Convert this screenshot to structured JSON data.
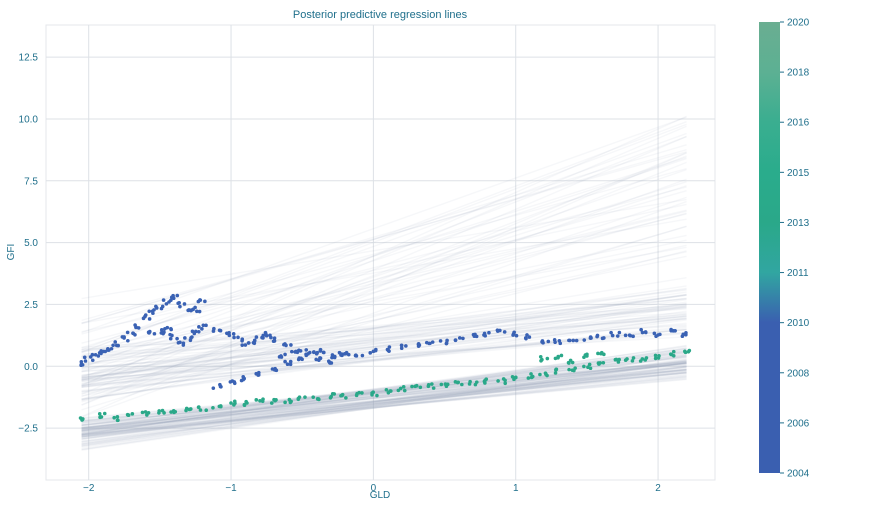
{
  "chart_data": {
    "type": "scatter",
    "title": "Posterior predictive regression lines",
    "xlabel": "GLD",
    "ylabel": "GFI",
    "xlim": [
      -2.3,
      2.4
    ],
    "ylim": [
      -4.6,
      13.8
    ],
    "xticks": [
      -2,
      -1,
      0,
      1,
      2
    ],
    "xtick_labels": [
      "−2",
      "−1",
      "0",
      "1",
      "2"
    ],
    "yticks": [
      -2.5,
      0.0,
      2.5,
      5.0,
      7.5,
      10.0,
      12.5
    ],
    "ytick_labels": [
      "−2.5",
      "0.0",
      "2.5",
      "5.0",
      "7.5",
      "10.0",
      "12.5"
    ],
    "grid": true,
    "colorbar": {
      "label_values": [
        "2004",
        "2006",
        "2008",
        "2010",
        "2011",
        "2013",
        "2015",
        "2016",
        "2018",
        "2020"
      ],
      "colors": [
        "#3a5fb0",
        "#3a5fb0",
        "#3a5fb0",
        "#3a5fb0",
        "#31a6a1",
        "#2aa889",
        "#2aac8c",
        "#3aae90",
        "#5cb093",
        "#6aae91"
      ]
    },
    "regression_lines": {
      "count": 200,
      "x_range": [
        -2.05,
        2.2
      ],
      "color": "#9aa6b8",
      "intercept_range": [
        -1.6,
        5.7
      ],
      "slope_range": [
        0.3,
        2.6
      ]
    },
    "series": [
      {
        "era": "2004-2010",
        "color": "#3a62b4",
        "points": [
          [
            -2.05,
            0.1
          ],
          [
            -2.0,
            0.3
          ],
          [
            -1.95,
            0.5
          ],
          [
            -1.9,
            0.6
          ],
          [
            -1.85,
            0.7
          ],
          [
            -1.8,
            0.9
          ],
          [
            -1.75,
            1.1
          ],
          [
            -1.7,
            1.3
          ],
          [
            -1.65,
            1.6
          ],
          [
            -1.6,
            2.0
          ],
          [
            -1.55,
            2.2
          ],
          [
            -1.5,
            2.4
          ],
          [
            -1.45,
            2.6
          ],
          [
            -1.4,
            2.8
          ],
          [
            -1.35,
            2.5
          ],
          [
            -1.3,
            2.2
          ],
          [
            -1.25,
            2.3
          ],
          [
            -1.2,
            2.6
          ],
          [
            -1.55,
            1.4
          ],
          [
            -1.5,
            1.4
          ],
          [
            -1.45,
            1.5
          ],
          [
            -1.4,
            1.2
          ],
          [
            -1.35,
            0.9
          ],
          [
            -1.3,
            1.1
          ],
          [
            -1.25,
            1.4
          ],
          [
            -1.2,
            1.6
          ],
          [
            -1.1,
            1.5
          ],
          [
            -1.0,
            1.3
          ],
          [
            -0.95,
            1.1
          ],
          [
            -0.9,
            0.9
          ],
          [
            -0.85,
            1.0
          ],
          [
            -0.8,
            1.2
          ],
          [
            -0.75,
            1.3
          ],
          [
            -0.7,
            1.1
          ],
          [
            -0.6,
            0.9
          ],
          [
            -0.5,
            0.7
          ],
          [
            -0.4,
            0.5
          ],
          [
            -0.3,
            0.4
          ],
          [
            -0.2,
            0.5
          ],
          [
            -0.1,
            0.5
          ],
          [
            0.0,
            0.6
          ],
          [
            0.1,
            0.7
          ],
          [
            0.2,
            0.8
          ],
          [
            0.3,
            0.9
          ],
          [
            0.4,
            0.9
          ],
          [
            0.5,
            1.0
          ],
          [
            0.6,
            1.1
          ],
          [
            0.7,
            1.2
          ],
          [
            0.8,
            1.3
          ],
          [
            0.9,
            1.4
          ],
          [
            1.0,
            1.3
          ],
          [
            1.1,
            1.2
          ],
          [
            1.2,
            1.0
          ],
          [
            1.3,
            1.0
          ],
          [
            1.4,
            1.1
          ],
          [
            1.5,
            1.1
          ],
          [
            1.6,
            1.2
          ],
          [
            1.7,
            1.3
          ],
          [
            1.8,
            1.3
          ],
          [
            1.9,
            1.4
          ],
          [
            2.0,
            1.3
          ],
          [
            2.1,
            1.4
          ],
          [
            2.2,
            1.3
          ],
          [
            -1.1,
            -0.8
          ],
          [
            -1.0,
            -0.6
          ],
          [
            -0.9,
            -0.5
          ],
          [
            -0.8,
            -0.3
          ],
          [
            -0.7,
            -0.1
          ],
          [
            -0.6,
            0.1
          ],
          [
            -0.5,
            0.3
          ],
          [
            -0.45,
            0.5
          ],
          [
            -0.4,
            0.3
          ],
          [
            -0.3,
            0.2
          ],
          [
            -0.65,
            0.4
          ],
          [
            -0.55,
            0.6
          ],
          [
            -0.35,
            0.6
          ],
          [
            -0.25,
            0.5
          ]
        ]
      },
      {
        "era": "2011-2020",
        "color": "#2aa889",
        "points": [
          [
            -2.05,
            -2.1
          ],
          [
            -1.9,
            -2.0
          ],
          [
            -1.8,
            -2.1
          ],
          [
            -1.7,
            -2.0
          ],
          [
            -1.6,
            -1.9
          ],
          [
            -1.5,
            -1.8
          ],
          [
            -1.4,
            -1.8
          ],
          [
            -1.3,
            -1.7
          ],
          [
            -1.2,
            -1.7
          ],
          [
            -1.1,
            -1.6
          ],
          [
            -1.0,
            -1.5
          ],
          [
            -0.9,
            -1.5
          ],
          [
            -0.8,
            -1.4
          ],
          [
            -0.7,
            -1.4
          ],
          [
            -0.6,
            -1.4
          ],
          [
            -0.5,
            -1.3
          ],
          [
            -0.4,
            -1.3
          ],
          [
            -0.3,
            -1.2
          ],
          [
            -0.2,
            -1.2
          ],
          [
            -0.1,
            -1.1
          ],
          [
            0.0,
            -1.1
          ],
          [
            0.1,
            -1.0
          ],
          [
            0.2,
            -0.9
          ],
          [
            0.3,
            -0.8
          ],
          [
            0.4,
            -0.8
          ],
          [
            0.5,
            -0.8
          ],
          [
            0.6,
            -0.7
          ],
          [
            0.7,
            -0.7
          ],
          [
            0.8,
            -0.6
          ],
          [
            0.9,
            -0.6
          ],
          [
            1.0,
            -0.5
          ],
          [
            1.1,
            -0.4
          ],
          [
            1.2,
            -0.3
          ],
          [
            1.3,
            -0.2
          ],
          [
            1.4,
            -0.1
          ],
          [
            1.5,
            0.0
          ],
          [
            1.6,
            0.1
          ],
          [
            1.7,
            0.2
          ],
          [
            1.8,
            0.3
          ],
          [
            1.9,
            0.3
          ],
          [
            2.0,
            0.4
          ],
          [
            2.1,
            0.5
          ],
          [
            2.2,
            0.6
          ],
          [
            1.2,
            0.3
          ],
          [
            1.3,
            0.4
          ],
          [
            1.4,
            0.2
          ],
          [
            1.5,
            0.4
          ],
          [
            1.6,
            0.5
          ]
        ]
      }
    ]
  }
}
